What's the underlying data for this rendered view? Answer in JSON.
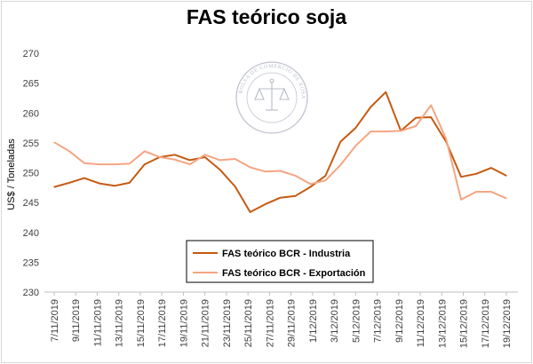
{
  "chart_data": {
    "type": "line",
    "title": "FAS teórico soja",
    "ylabel": "US$ / Toneladas",
    "xlabel": "",
    "ylim": [
      230,
      270
    ],
    "yticks": [
      230,
      235,
      240,
      245,
      250,
      255,
      260,
      265,
      270
    ],
    "grid": false,
    "legend_position": "bottom-left-inside",
    "x": [
      "7/11/2019",
      "8/11/2019",
      "11/11/2019",
      "12/11/2019",
      "13/11/2019",
      "14/11/2019",
      "15/11/2019",
      "18/11/2019",
      "19/11/2019",
      "20/11/2019",
      "21/11/2019",
      "22/11/2019",
      "25/11/2019",
      "26/11/2019",
      "27/11/2019",
      "28/11/2019",
      "29/11/2019",
      "2/12/2019",
      "3/12/2019",
      "4/12/2019",
      "5/12/2019",
      "6/12/2019",
      "9/12/2019",
      "10/12/2019",
      "11/12/2019",
      "12/12/2019",
      "13/12/2019",
      "16/12/2019",
      "17/12/2019",
      "18/12/2019",
      "19/12/2019"
    ],
    "x_tick_labels": [
      "7/11/2019",
      "9/11/2019",
      "11/11/2019",
      "13/11/2019",
      "15/11/2019",
      "17/11/2019",
      "19/11/2019",
      "21/11/2019",
      "23/11/2019",
      "25/11/2019",
      "27/11/2019",
      "29/11/2019",
      "1/12/2019",
      "3/12/2019",
      "5/12/2019",
      "7/12/2019",
      "9/12/2019",
      "11/12/2019",
      "13/12/2019",
      "15/12/2019",
      "17/12/2019",
      "19/12/2019"
    ],
    "series": [
      {
        "name": "FAS teórico BCR - Industria",
        "color": "#c55a11",
        "values": [
          247.6,
          248.3,
          249.1,
          248.2,
          247.8,
          248.3,
          251.4,
          252.6,
          253.0,
          252.1,
          252.6,
          250.5,
          247.7,
          243.4,
          244.7,
          245.8,
          246.1,
          247.6,
          249.5,
          255.2,
          257.5,
          261.0,
          263.5,
          257.0,
          259.2,
          259.3,
          255.2,
          249.3,
          249.8,
          250.8,
          249.5
        ]
      },
      {
        "name": "FAS teórico BCR - Exportación",
        "color": "#f4a582",
        "values": [
          255.1,
          253.6,
          251.6,
          251.4,
          251.4,
          251.5,
          253.6,
          252.6,
          252.2,
          251.4,
          253.0,
          252.1,
          252.3,
          250.9,
          250.2,
          250.3,
          249.5,
          248.1,
          248.7,
          251.3,
          254.5,
          256.9,
          256.9,
          257.0,
          257.8,
          261.3,
          255.7,
          245.5,
          246.8,
          246.8,
          245.7
        ]
      }
    ]
  },
  "watermark": {
    "seal_text": "BOLSA DE COMERCIO DE ROSARIO",
    "color": "#b8bcc8"
  }
}
